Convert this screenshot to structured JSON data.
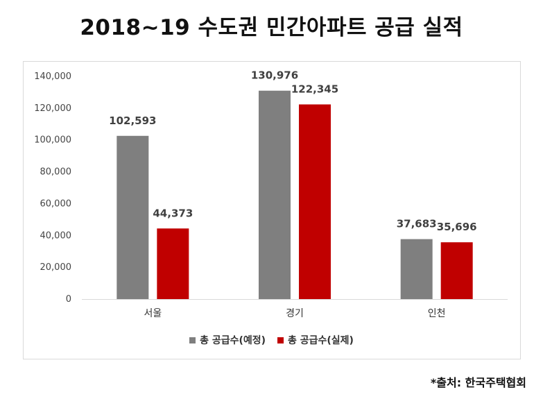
{
  "title": "2018~19 수도권 민간아파트 공급 실적",
  "source": "*출처: 한국주택협회",
  "colors": {
    "planned": "#7f7f7f",
    "actual": "#c00000"
  },
  "chart_data": {
    "type": "bar",
    "title": "2018~19 수도권 민간아파트 공급 실적",
    "categories": [
      "서울",
      "경기",
      "인천"
    ],
    "series": [
      {
        "name": "총 공급수(예정)",
        "values": [
          102593,
          130976,
          37683
        ],
        "labels": [
          "102,593",
          "130,976",
          "37,683"
        ]
      },
      {
        "name": "총 공급수(실제)",
        "values": [
          44373,
          122345,
          35696
        ],
        "labels": [
          "44,373",
          "122,345",
          "35,696"
        ]
      }
    ],
    "ylim": [
      0,
      140000
    ],
    "yticks": [
      "0",
      "20,000",
      "40,000",
      "60,000",
      "80,000",
      "100,000",
      "120,000",
      "140,000"
    ],
    "xlabel": "",
    "ylabel": "",
    "grid": false,
    "legend_position": "bottom"
  }
}
